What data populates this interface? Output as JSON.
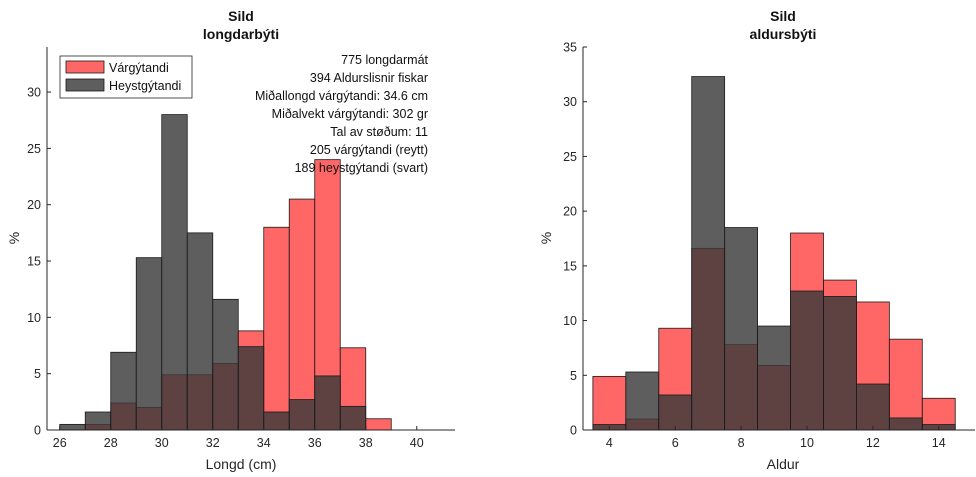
{
  "chart_data": [
    {
      "type": "bar",
      "title": "Sild",
      "subtitle": "longdarbýti",
      "xlabel": "Longd (cm)",
      "ylabel": "%",
      "xlim": [
        25.5,
        41.5
      ],
      "ylim": [
        0,
        34
      ],
      "xticks": [
        26,
        28,
        30,
        32,
        34,
        36,
        38,
        40
      ],
      "yticks": [
        0,
        5,
        10,
        15,
        20,
        25,
        30
      ],
      "grid": false,
      "legend": {
        "placement": "top-left"
      },
      "annotations": [
        "775 longdarmát",
        "394 Aldurslisnir fiskar",
        "Miðallongd várgýtandi: 34.6 cm",
        "Miðalvekt várgýtandi: 302 gr",
        "Tal av støðum: 11",
        "205 várgýtandi (reytt)",
        "189 heystgýtandi (svart)"
      ],
      "bin_edges": [
        26,
        27,
        28,
        29,
        30,
        31,
        32,
        33,
        34,
        35,
        36,
        37,
        38,
        39
      ],
      "series": [
        {
          "name": "Várgýtandi",
          "color": "#ff3b3b",
          "opacity": 0.78,
          "values": [
            0,
            0.5,
            2.4,
            2.0,
            4.9,
            4.9,
            5.9,
            8.8,
            18.0,
            20.5,
            24.0,
            7.3,
            1.0
          ]
        },
        {
          "name": "Heystgýtandi",
          "color": "#3a3a3a",
          "opacity": 0.82,
          "values": [
            0.5,
            1.6,
            6.9,
            15.3,
            28.0,
            17.5,
            11.6,
            7.4,
            1.6,
            2.7,
            4.8,
            2.1,
            0
          ]
        }
      ]
    },
    {
      "type": "bar",
      "title": "Sild",
      "subtitle": "aldursbýti",
      "xlabel": "Aldur",
      "ylabel": "%",
      "xlim": [
        3.2,
        15.1
      ],
      "ylim": [
        0,
        35
      ],
      "xticks": [
        4,
        6,
        8,
        10,
        12,
        14
      ],
      "yticks": [
        0,
        5,
        10,
        15,
        20,
        25,
        30,
        35
      ],
      "grid": false,
      "bin_edges": [
        3.5,
        4.5,
        5.5,
        6.5,
        7.5,
        8.5,
        9.5,
        10.5,
        11.5,
        12.5,
        13.5,
        14.5
      ],
      "series": [
        {
          "name": "Várgýtandi",
          "color": "#ff3b3b",
          "opacity": 0.78,
          "values": [
            4.9,
            1.0,
            9.3,
            16.6,
            7.8,
            5.9,
            18.0,
            13.7,
            11.7,
            8.3,
            2.9
          ]
        },
        {
          "name": "Heystgýtandi",
          "color": "#3a3a3a",
          "opacity": 0.82,
          "values": [
            0.5,
            5.3,
            3.2,
            32.3,
            18.5,
            9.5,
            12.7,
            12.2,
            4.2,
            1.1,
            0.5
          ]
        }
      ]
    }
  ]
}
